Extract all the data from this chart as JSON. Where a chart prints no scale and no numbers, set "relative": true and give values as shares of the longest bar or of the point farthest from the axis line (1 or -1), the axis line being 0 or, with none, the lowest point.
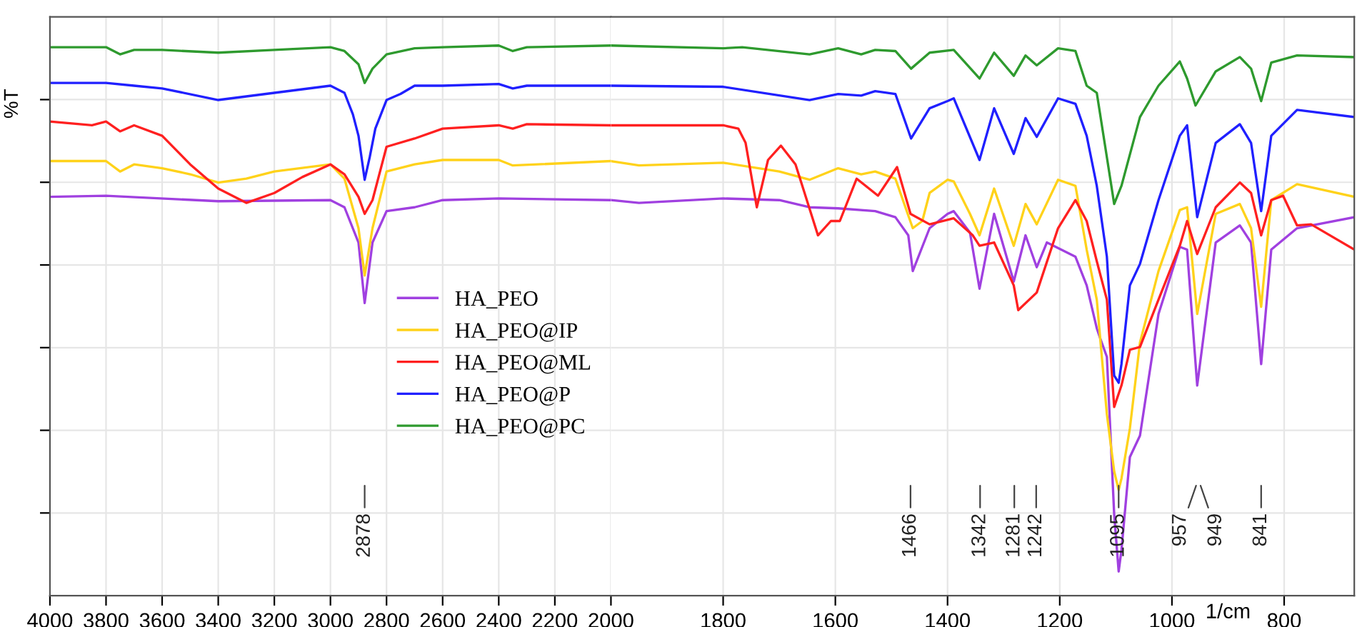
{
  "chart_data": [
    {
      "type": "line",
      "relative": true,
      "ylabel": "%T",
      "xlim": [
        4000,
        2000
      ],
      "xticks": [
        4000,
        3800,
        3600,
        3400,
        3200,
        3000,
        2800,
        2600,
        2400,
        2200,
        2000
      ],
      "grid": true,
      "legend": "right",
      "tick_labels": "x",
      "line_style": "solid",
      "marker": "none",
      "annotations": [
        {
          "text": "2878",
          "x": 2878
        }
      ],
      "series": [
        {
          "name": "HA_PEO",
          "color": "#a040e0",
          "x": [
            4000,
            3800,
            3400,
            3000,
            2950,
            2900,
            2878,
            2850,
            2800,
            2700,
            2600,
            2400,
            2000
          ],
          "values": [
            0.725,
            0.727,
            0.717,
            0.719,
            0.706,
            0.642,
            0.532,
            0.642,
            0.699,
            0.706,
            0.719,
            0.722,
            0.719
          ]
        },
        {
          "name": "HA_PEO@IP",
          "color": "#ffd21a",
          "x": [
            4000,
            3800,
            3750,
            3700,
            3600,
            3500,
            3400,
            3300,
            3200,
            3000,
            2950,
            2900,
            2878,
            2850,
            2800,
            2700,
            2600,
            2400,
            2350,
            2000
          ],
          "values": [
            0.79,
            0.79,
            0.771,
            0.784,
            0.777,
            0.766,
            0.751,
            0.758,
            0.771,
            0.784,
            0.758,
            0.668,
            0.582,
            0.668,
            0.771,
            0.784,
            0.792,
            0.792,
            0.782,
            0.79
          ]
        },
        {
          "name": "HA_PEO@ML",
          "color": "#ff2020",
          "x": [
            4000,
            3850,
            3800,
            3750,
            3700,
            3600,
            3500,
            3400,
            3300,
            3200,
            3100,
            3000,
            2950,
            2900,
            2878,
            2850,
            2800,
            2700,
            2600,
            2400,
            2350,
            2300,
            2000
          ],
          "values": [
            0.862,
            0.855,
            0.862,
            0.844,
            0.855,
            0.836,
            0.784,
            0.74,
            0.714,
            0.732,
            0.761,
            0.784,
            0.766,
            0.725,
            0.694,
            0.719,
            0.816,
            0.831,
            0.849,
            0.855,
            0.849,
            0.857,
            0.855
          ]
        },
        {
          "name": "HA_PEO@P",
          "color": "#2020ff",
          "x": [
            4000,
            3800,
            3700,
            3600,
            3400,
            3200,
            3000,
            2950,
            2920,
            2900,
            2878,
            2860,
            2840,
            2800,
            2750,
            2700,
            2600,
            2400,
            2350,
            2300,
            2000
          ],
          "values": [
            0.932,
            0.932,
            0.927,
            0.922,
            0.901,
            0.914,
            0.927,
            0.914,
            0.875,
            0.836,
            0.756,
            0.797,
            0.849,
            0.901,
            0.912,
            0.927,
            0.927,
            0.93,
            0.922,
            0.927,
            0.927
          ]
        },
        {
          "name": "HA_PEO@PC",
          "color": "#2e9a2e",
          "x": [
            4000,
            3800,
            3750,
            3700,
            3600,
            3400,
            3200,
            3000,
            2950,
            2900,
            2878,
            2850,
            2800,
            2700,
            2600,
            2400,
            2350,
            2300,
            2000
          ],
          "values": [
            0.997,
            0.997,
            0.984,
            0.992,
            0.992,
            0.987,
            0.992,
            0.997,
            0.99,
            0.966,
            0.932,
            0.958,
            0.984,
            0.995,
            0.997,
            1.0,
            0.99,
            0.997,
            1.0
          ]
        }
      ]
    },
    {
      "type": "line",
      "relative": true,
      "xlabel": "1/cm",
      "xlim": [
        2000,
        675
      ],
      "xticks": [
        1800,
        1600,
        1400,
        1200,
        1000,
        800
      ],
      "grid": true,
      "tick_labels": "x",
      "line_style": "solid",
      "marker": "none",
      "annotations": [
        {
          "text": "1466",
          "x": 1466
        },
        {
          "text": "1342",
          "x": 1342
        },
        {
          "text": "1281",
          "x": 1281
        },
        {
          "text": "1242",
          "x": 1242
        },
        {
          "text": "1095",
          "x": 1095
        },
        {
          "text": "957",
          "x": 957
        },
        {
          "text": "949",
          "x": 949
        },
        {
          "text": "841",
          "x": 841
        }
      ],
      "series": [
        {
          "color": "#a040e0",
          "x": [
            2000,
            1950,
            1800,
            1700,
            1646,
            1595,
            1529,
            1493,
            1470,
            1462,
            1432,
            1400,
            1389,
            1360,
            1343,
            1317,
            1282,
            1261,
            1241,
            1223,
            1172,
            1152,
            1134,
            1128,
            1116,
            1103,
            1095,
            1090,
            1075,
            1057,
            1024,
            986,
            973,
            955,
            922,
            879,
            859,
            841,
            823,
            777,
            675
          ],
          "values": [
            0.719,
            0.714,
            0.722,
            0.719,
            0.706,
            0.704,
            0.699,
            0.688,
            0.655,
            0.59,
            0.668,
            0.694,
            0.699,
            0.66,
            0.558,
            0.694,
            0.571,
            0.655,
            0.597,
            0.642,
            0.616,
            0.564,
            0.486,
            0.468,
            0.434,
            0.148,
            0.044,
            0.083,
            0.252,
            0.291,
            0.512,
            0.634,
            0.629,
            0.382,
            0.642,
            0.673,
            0.642,
            0.421,
            0.629,
            0.668,
            0.688
          ]
        },
        {
          "color": "#ffd21a",
          "x": [
            2000,
            1950,
            1800,
            1700,
            1646,
            1595,
            1554,
            1529,
            1493,
            1462,
            1445,
            1432,
            1400,
            1389,
            1360,
            1343,
            1317,
            1282,
            1261,
            1241,
            1203,
            1172,
            1152,
            1134,
            1116,
            1103,
            1095,
            1090,
            1075,
            1057,
            1024,
            986,
            973,
            955,
            922,
            879,
            859,
            841,
            823,
            777,
            675
          ],
          "values": [
            0.79,
            0.782,
            0.787,
            0.771,
            0.756,
            0.777,
            0.766,
            0.771,
            0.758,
            0.668,
            0.681,
            0.732,
            0.756,
            0.753,
            0.694,
            0.655,
            0.74,
            0.636,
            0.712,
            0.675,
            0.756,
            0.745,
            0.629,
            0.538,
            0.33,
            0.226,
            0.192,
            0.213,
            0.304,
            0.46,
            0.59,
            0.701,
            0.706,
            0.512,
            0.694,
            0.712,
            0.668,
            0.525,
            0.719,
            0.748,
            0.725
          ]
        },
        {
          "color": "#ff2020",
          "x": [
            2000,
            1800,
            1773,
            1760,
            1740,
            1720,
            1697,
            1671,
            1631,
            1608,
            1592,
            1562,
            1524,
            1490,
            1466,
            1432,
            1389,
            1355,
            1343,
            1317,
            1282,
            1274,
            1241,
            1203,
            1172,
            1152,
            1134,
            1116,
            1103,
            1090,
            1075,
            1057,
            1024,
            986,
            973,
            955,
            922,
            879,
            859,
            841,
            823,
            802,
            777,
            752,
            675
          ],
          "values": [
            0.855,
            0.855,
            0.849,
            0.823,
            0.706,
            0.792,
            0.818,
            0.784,
            0.655,
            0.681,
            0.681,
            0.758,
            0.727,
            0.779,
            0.694,
            0.675,
            0.686,
            0.655,
            0.636,
            0.642,
            0.564,
            0.519,
            0.551,
            0.668,
            0.719,
            0.681,
            0.608,
            0.538,
            0.343,
            0.382,
            0.447,
            0.452,
            0.538,
            0.636,
            0.681,
            0.621,
            0.706,
            0.751,
            0.732,
            0.655,
            0.719,
            0.727,
            0.673,
            0.675,
            0.629
          ]
        },
        {
          "color": "#2020ff",
          "x": [
            2000,
            1800,
            1646,
            1595,
            1554,
            1529,
            1493,
            1465,
            1432,
            1400,
            1389,
            1343,
            1317,
            1282,
            1261,
            1241,
            1203,
            1172,
            1152,
            1134,
            1116,
            1103,
            1095,
            1090,
            1075,
            1057,
            1024,
            986,
            973,
            955,
            922,
            879,
            859,
            841,
            823,
            777,
            675
          ],
          "values": [
            0.927,
            0.925,
            0.901,
            0.912,
            0.909,
            0.917,
            0.912,
            0.831,
            0.886,
            0.899,
            0.904,
            0.792,
            0.886,
            0.803,
            0.868,
            0.834,
            0.904,
            0.894,
            0.836,
            0.745,
            0.616,
            0.4,
            0.387,
            0.421,
            0.564,
            0.603,
            0.719,
            0.836,
            0.855,
            0.688,
            0.823,
            0.857,
            0.823,
            0.699,
            0.836,
            0.883,
            0.87
          ]
        },
        {
          "color": "#2e9a2e",
          "x": [
            2000,
            1800,
            1766,
            1646,
            1595,
            1554,
            1529,
            1493,
            1465,
            1432,
            1389,
            1343,
            1317,
            1282,
            1261,
            1241,
            1203,
            1172,
            1152,
            1134,
            1116,
            1103,
            1090,
            1057,
            1024,
            986,
            973,
            958,
            922,
            879,
            859,
            841,
            823,
            777,
            675
          ],
          "values": [
            1.0,
            0.995,
            0.997,
            0.984,
            0.995,
            0.984,
            0.992,
            0.99,
            0.958,
            0.987,
            0.992,
            0.94,
            0.987,
            0.945,
            0.982,
            0.964,
            0.995,
            0.99,
            0.927,
            0.914,
            0.797,
            0.712,
            0.745,
            0.87,
            0.927,
            0.971,
            0.94,
            0.891,
            0.953,
            0.979,
            0.958,
            0.899,
            0.969,
            0.982,
            0.979
          ]
        }
      ]
    }
  ]
}
